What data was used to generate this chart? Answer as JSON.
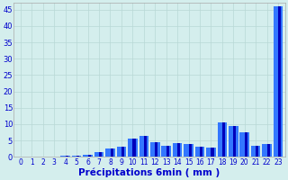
{
  "xlabel": "Précipitations 6min ( mm )",
  "background_color": "#d4eeed",
  "grid_color": "#b8d8d5",
  "bar_color_light": "#3377ff",
  "bar_color_dark": "#0000bb",
  "ylim": [
    0,
    47
  ],
  "yticks": [
    0,
    5,
    10,
    15,
    20,
    25,
    30,
    35,
    40,
    45
  ],
  "values": [
    0.0,
    0.0,
    0.0,
    0.0,
    0.3,
    0.4,
    0.5,
    1.5,
    2.5,
    3.2,
    5.5,
    6.5,
    4.5,
    3.5,
    4.2,
    4.0,
    3.0,
    2.8,
    10.5,
    9.5,
    7.5,
    3.5,
    3.8,
    46.0
  ],
  "xtick_labels": [
    "0",
    "1",
    "2",
    "3",
    "4",
    "5",
    "6",
    "7",
    "8",
    "9",
    "10",
    "11",
    "12",
    "13",
    "14",
    "15",
    "16",
    "17",
    "18",
    "19",
    "20",
    "21",
    "22",
    "23"
  ]
}
